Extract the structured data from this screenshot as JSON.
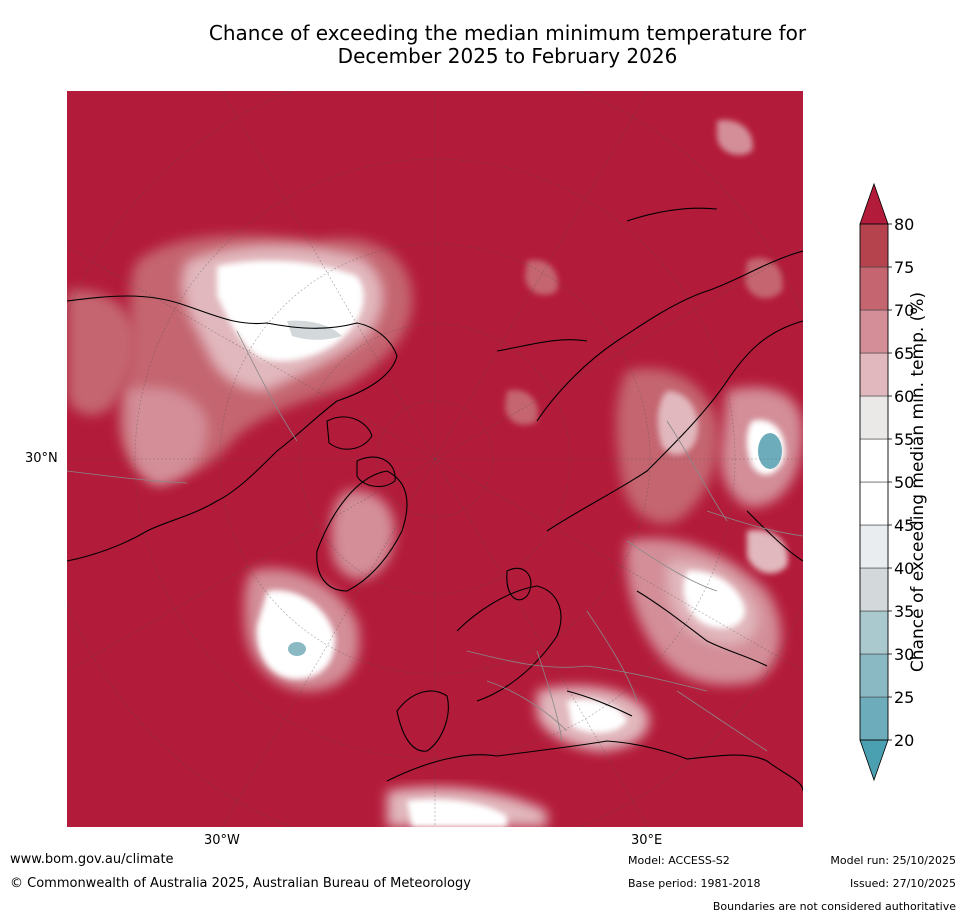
{
  "title_line1": "Chance of exceeding the median minimum temperature for",
  "title_line2": "December 2025 to February 2026",
  "map": {
    "projection": "north-polar-stereographic",
    "lat_label": "30°N",
    "lon_labels": [
      "30°W",
      "30°E"
    ],
    "dominant_color": "#b31b3a"
  },
  "colorbar": {
    "title": "Chance of exceeding median min. temp. (%)",
    "ticks": [
      "20",
      "25",
      "30",
      "35",
      "40",
      "45",
      "50",
      "55",
      "60",
      "65",
      "70",
      "75",
      "80"
    ],
    "colors": [
      "#4a9fb1",
      "#6dacba",
      "#8ab9c4",
      "#a9c9cf",
      "#d3d9da",
      "#e9edf0",
      "#ffffff",
      "#ffffff",
      "#ebe8e8",
      "#e1b8bd",
      "#d38e98",
      "#c4656f",
      "#b4434e",
      "#b31b3a"
    ]
  },
  "footer": {
    "website": "www.bom.gov.au/climate",
    "copyright": "© Commonwealth of Australia 2025, Australian Bureau of Meteorology",
    "model": "Model: ACCESS-S2",
    "base_period": "Base period: 1981-2018",
    "model_run": "Model run: 25/10/2025",
    "issued": "Issued: 27/10/2025",
    "disclaimer": "Boundaries are not considered authoritative"
  }
}
